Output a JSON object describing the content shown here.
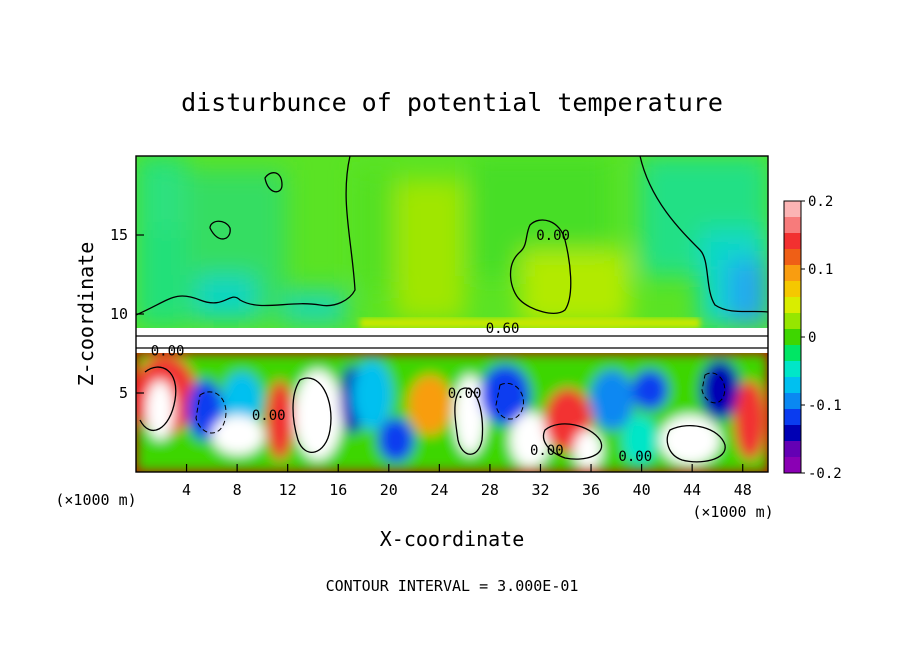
{
  "chart_data": {
    "type": "heatmap",
    "title": "disturbunce of potential temperature",
    "xlabel": "X-coordinate",
    "ylabel": "Z-coordinate",
    "x_unit_left": "(×1000 m)",
    "x_unit_right": "(×1000 m)",
    "footer": "CONTOUR INTERVAL = 3.000E-01",
    "xlim": [
      0,
      50
    ],
    "ylim": [
      0,
      20
    ],
    "x_ticks": [
      "4",
      "8",
      "12",
      "16",
      "20",
      "24",
      "28",
      "32",
      "36",
      "40",
      "44",
      "48"
    ],
    "y_ticks": [
      "5",
      "10",
      "15"
    ],
    "colorbar": {
      "min": -0.2,
      "max": 0.2,
      "tick_labels": [
        "0.2",
        "0.1",
        "0",
        "-0.1",
        "-0.2"
      ],
      "colors": [
        "#fbb4b4",
        "#f77b7b",
        "#f23030",
        "#ef5f16",
        "#f99d10",
        "#f5c800",
        "#d9ed00",
        "#96e600",
        "#3ed600",
        "#00e664",
        "#00e6c8",
        "#00c0f0",
        "#0a88f2",
        "#0a3cf0",
        "#0000b4",
        "#6400b4",
        "#8a00b4"
      ]
    },
    "contour_labels": [
      {
        "text": "0.60",
        "x": 29.0,
        "z": 9.1
      },
      {
        "text": "0.00",
        "x": 2.5,
        "z": 7.7
      },
      {
        "text": "0.00",
        "x": 10.5,
        "z": 3.6
      },
      {
        "text": "0.00",
        "x": 26.0,
        "z": 5.0
      },
      {
        "text": "0.00",
        "x": 32.5,
        "z": 1.4
      },
      {
        "text": "0.00",
        "x": 39.5,
        "z": 1.0
      },
      {
        "text": "0.00",
        "x": 33.0,
        "z": 15.0
      }
    ],
    "grid": false
  }
}
